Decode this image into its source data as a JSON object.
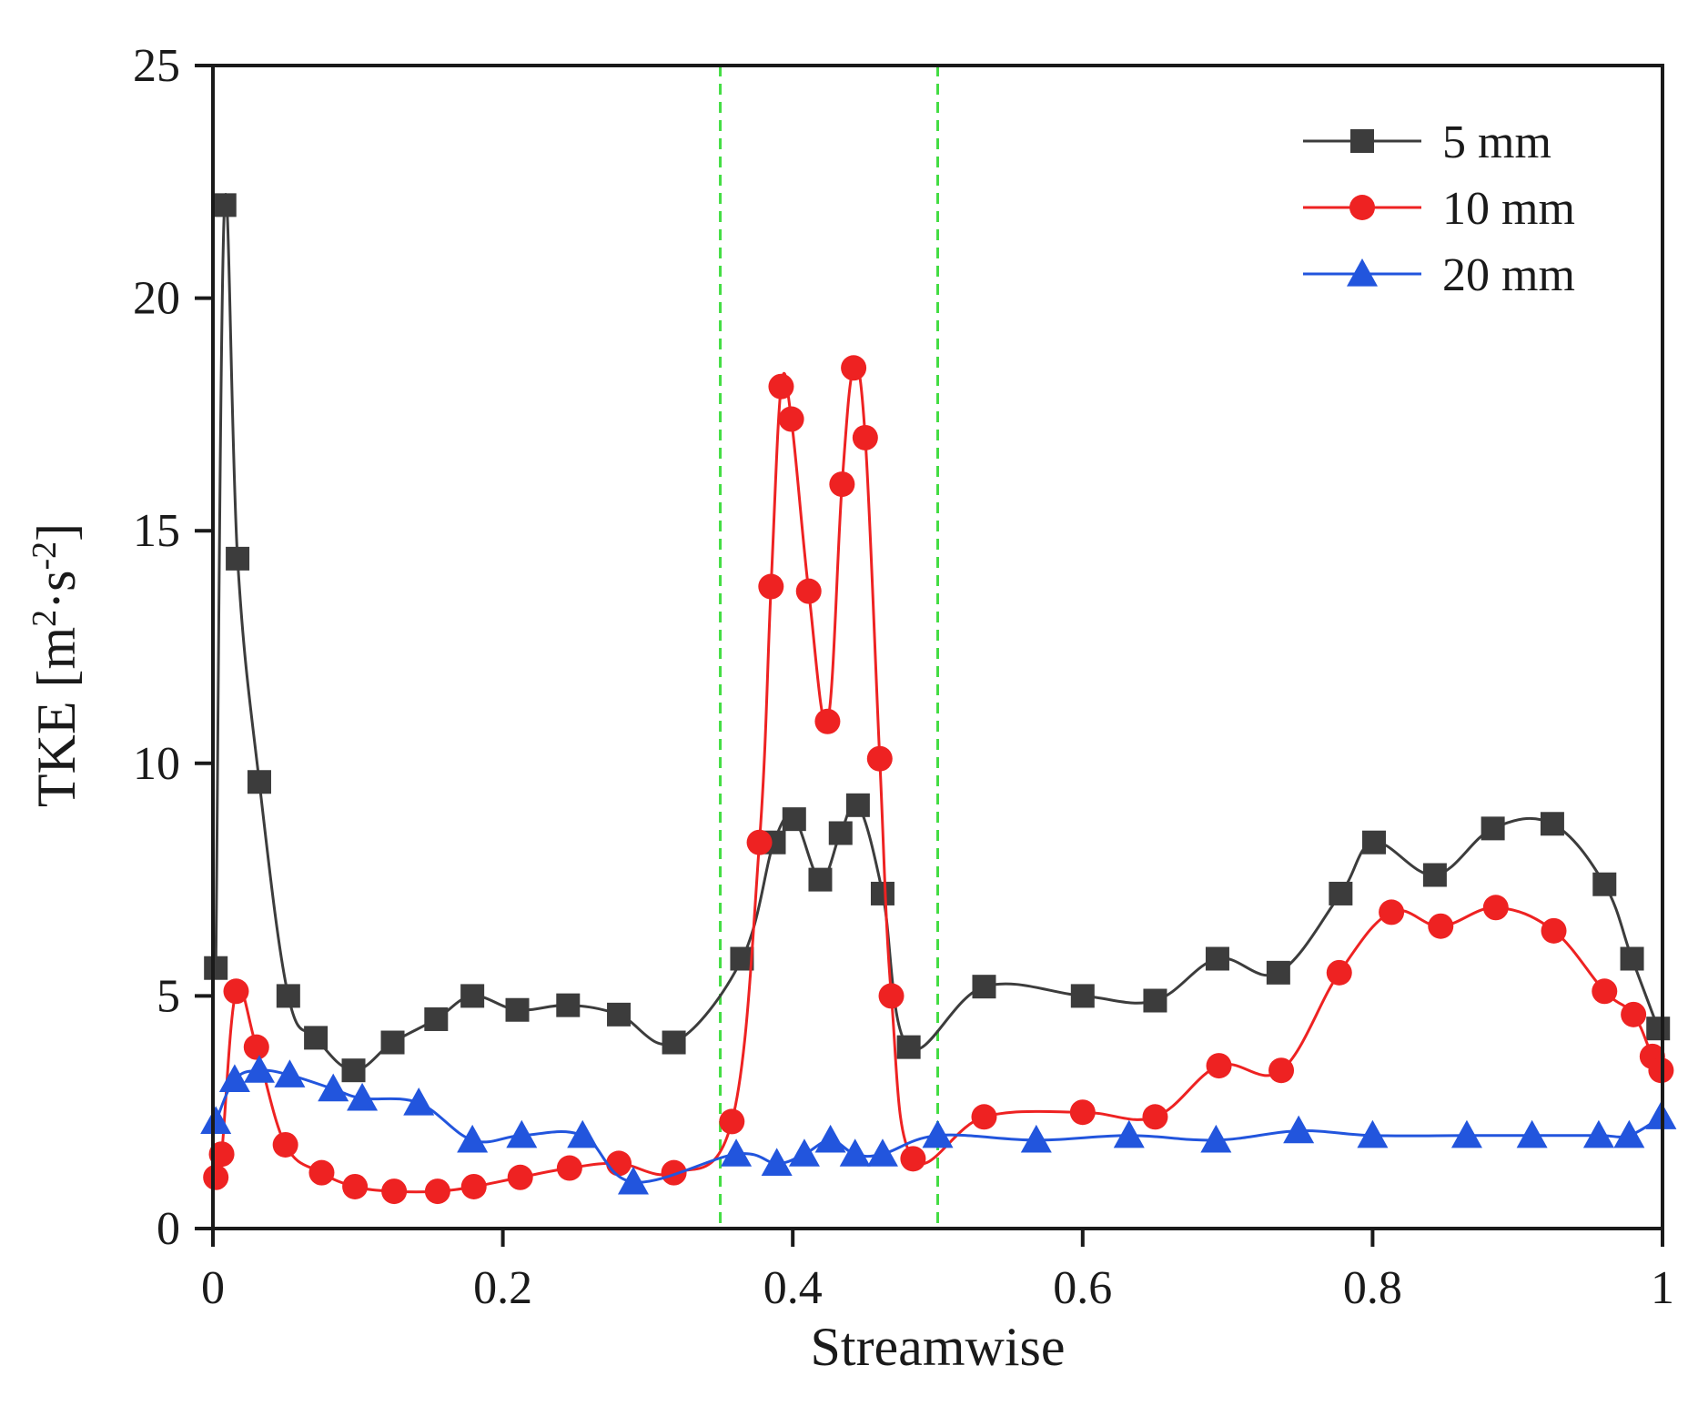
{
  "chart_data": {
    "type": "line",
    "title": "",
    "xlabel": "Streamwise",
    "ylabel": "TKE [m2·s-2]",
    "ylabel_parts": {
      "main": "TKE [m",
      "sup1": "2",
      "mid": "·s",
      "sup2": "-2",
      "end": "]"
    },
    "xlim": [
      0,
      1
    ],
    "ylim": [
      0,
      25
    ],
    "x_ticks": [
      0,
      0.2,
      0.4,
      0.6,
      0.8,
      1
    ],
    "x_tick_labels": [
      "0",
      "0.2",
      "0.4",
      "0.6",
      "0.8",
      "1"
    ],
    "y_ticks": [
      0,
      5,
      10,
      15,
      20,
      25
    ],
    "y_tick_labels": [
      "0",
      "5",
      "10",
      "15",
      "20",
      "25"
    ],
    "grid": false,
    "legend_position": "top-right",
    "reference_lines": [
      {
        "x": 0.35,
        "color": "#44dd44",
        "style": "dashed"
      },
      {
        "x": 0.5,
        "color": "#44dd44",
        "style": "dashed"
      }
    ],
    "series": [
      {
        "name": "5 mm",
        "color": "#3c3c3c",
        "marker": "square",
        "points": [
          [
            0.002,
            5.6
          ],
          [
            0.008,
            22.0
          ],
          [
            0.017,
            14.4
          ],
          [
            0.032,
            9.6
          ],
          [
            0.052,
            5.0
          ],
          [
            0.071,
            4.1
          ],
          [
            0.097,
            3.4
          ],
          [
            0.124,
            4.0
          ],
          [
            0.154,
            4.5
          ],
          [
            0.179,
            5.0
          ],
          [
            0.21,
            4.7
          ],
          [
            0.245,
            4.8
          ],
          [
            0.28,
            4.6
          ],
          [
            0.318,
            4.0
          ],
          [
            0.365,
            5.8
          ],
          [
            0.387,
            8.3
          ],
          [
            0.401,
            8.8
          ],
          [
            0.419,
            7.5
          ],
          [
            0.433,
            8.5
          ],
          [
            0.445,
            9.1
          ],
          [
            0.462,
            7.2
          ],
          [
            0.48,
            3.9
          ],
          [
            0.532,
            5.2
          ],
          [
            0.6,
            5.0
          ],
          [
            0.65,
            4.9
          ],
          [
            0.693,
            5.8
          ],
          [
            0.735,
            5.5
          ],
          [
            0.778,
            7.2
          ],
          [
            0.801,
            8.3
          ],
          [
            0.843,
            7.6
          ],
          [
            0.883,
            8.6
          ],
          [
            0.924,
            8.7
          ],
          [
            0.96,
            7.4
          ],
          [
            0.979,
            5.8
          ],
          [
            0.997,
            4.3
          ]
        ]
      },
      {
        "name": "10 mm",
        "color": "#ee2222",
        "marker": "circle",
        "points": [
          [
            0.002,
            1.1
          ],
          [
            0.006,
            1.6
          ],
          [
            0.016,
            5.1
          ],
          [
            0.03,
            3.9
          ],
          [
            0.05,
            1.8
          ],
          [
            0.075,
            1.2
          ],
          [
            0.098,
            0.9
          ],
          [
            0.125,
            0.8
          ],
          [
            0.155,
            0.8
          ],
          [
            0.18,
            0.9
          ],
          [
            0.212,
            1.1
          ],
          [
            0.246,
            1.3
          ],
          [
            0.28,
            1.4
          ],
          [
            0.318,
            1.2
          ],
          [
            0.358,
            2.3
          ],
          [
            0.377,
            8.3
          ],
          [
            0.385,
            13.8
          ],
          [
            0.392,
            18.1
          ],
          [
            0.399,
            17.4
          ],
          [
            0.411,
            13.7
          ],
          [
            0.424,
            10.9
          ],
          [
            0.434,
            16.0
          ],
          [
            0.442,
            18.5
          ],
          [
            0.45,
            17.0
          ],
          [
            0.46,
            10.1
          ],
          [
            0.468,
            5.0
          ],
          [
            0.483,
            1.5
          ],
          [
            0.532,
            2.4
          ],
          [
            0.6,
            2.5
          ],
          [
            0.65,
            2.4
          ],
          [
            0.694,
            3.5
          ],
          [
            0.737,
            3.4
          ],
          [
            0.777,
            5.5
          ],
          [
            0.813,
            6.8
          ],
          [
            0.847,
            6.5
          ],
          [
            0.885,
            6.9
          ],
          [
            0.925,
            6.4
          ],
          [
            0.96,
            5.1
          ],
          [
            0.98,
            4.6
          ],
          [
            0.993,
            3.7
          ],
          [
            0.999,
            3.4
          ]
        ]
      },
      {
        "name": "20 mm",
        "color": "#2255dd",
        "marker": "triangle",
        "points": [
          [
            0.002,
            2.3
          ],
          [
            0.015,
            3.2
          ],
          [
            0.032,
            3.4
          ],
          [
            0.053,
            3.3
          ],
          [
            0.083,
            3.0
          ],
          [
            0.103,
            2.8
          ],
          [
            0.142,
            2.7
          ],
          [
            0.179,
            1.9
          ],
          [
            0.213,
            2.0
          ],
          [
            0.255,
            2.0
          ],
          [
            0.29,
            1.0
          ],
          [
            0.361,
            1.6
          ],
          [
            0.389,
            1.4
          ],
          [
            0.408,
            1.6
          ],
          [
            0.426,
            1.9
          ],
          [
            0.443,
            1.6
          ],
          [
            0.462,
            1.6
          ],
          [
            0.5,
            2.0
          ],
          [
            0.568,
            1.9
          ],
          [
            0.632,
            2.0
          ],
          [
            0.692,
            1.9
          ],
          [
            0.749,
            2.1
          ],
          [
            0.8,
            2.0
          ],
          [
            0.865,
            2.0
          ],
          [
            0.91,
            2.0
          ],
          [
            0.956,
            2.0
          ],
          [
            0.977,
            2.0
          ],
          [
            0.999,
            2.4
          ]
        ]
      }
    ]
  }
}
